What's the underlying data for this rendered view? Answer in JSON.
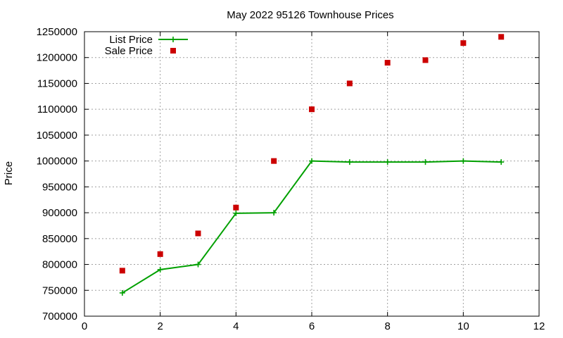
{
  "chart_data": {
    "type": "scatter",
    "title": "May 2022 95126 Townhouse Prices",
    "xlabel": "",
    "ylabel": "Price",
    "xlim": [
      0,
      12
    ],
    "ylim": [
      700000,
      1250000
    ],
    "xticks": [
      "0",
      "2",
      "4",
      "6",
      "8",
      "10",
      "12"
    ],
    "yticks": [
      "700000",
      "750000",
      "800000",
      "850000",
      "900000",
      "950000",
      "1000000",
      "1050000",
      "1100000",
      "1150000",
      "1200000",
      "1250000"
    ],
    "grid": true,
    "legend_position": "top-left",
    "series": [
      {
        "name": "List Price",
        "style": "line-points",
        "color": "#00a000",
        "x": [
          1,
          2,
          3,
          4,
          5,
          6,
          7,
          8,
          9,
          10,
          11
        ],
        "y": [
          745000,
          790000,
          800000,
          899000,
          900000,
          1000000,
          998000,
          998000,
          998000,
          1000000,
          998000
        ]
      },
      {
        "name": "Sale Price",
        "style": "points",
        "color": "#cc0000",
        "x": [
          1,
          2,
          3,
          4,
          5,
          6,
          7,
          8,
          9,
          10,
          11
        ],
        "y": [
          788000,
          820000,
          860000,
          910000,
          1000000,
          1100000,
          1150000,
          1190000,
          1195000,
          1228000,
          1240000
        ]
      }
    ]
  }
}
